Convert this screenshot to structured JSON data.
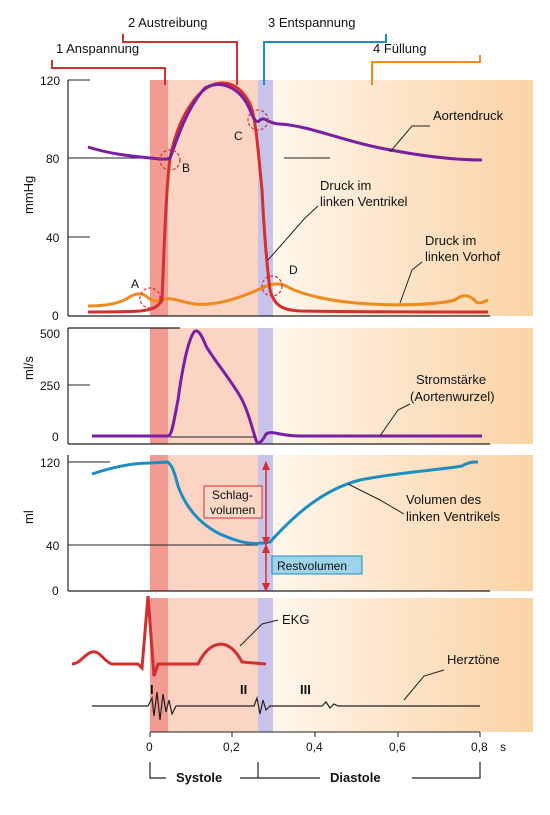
{
  "phases": {
    "p1": "1  Anspannung",
    "p2": "2  Austreibung",
    "p3": "3  Entspannung",
    "p4": "4  Füllung"
  },
  "panel1": {
    "ylabel": "mmHg",
    "ticks": [
      "120",
      "80",
      "40",
      "0"
    ],
    "aorta": "Aortendruck",
    "ventricle_l1": "Druck im",
    "ventricle_l2": "linken Ventrikel",
    "atrium_l1": "Druck im",
    "atrium_l2": "linken Vorhof",
    "markers": [
      "A",
      "B",
      "C",
      "D"
    ]
  },
  "panel2": {
    "ylabel": "ml/s",
    "ticks": [
      "500",
      "250",
      "0"
    ],
    "flow_l1": "Stromstärke",
    "flow_l2": "(Aortenwurzel)"
  },
  "panel3": {
    "ylabel": "ml",
    "ticks": [
      "120",
      "40",
      "0"
    ],
    "stroke_l1": "Schlag-",
    "stroke_l2": "volumen",
    "rest": "Restvolumen",
    "volume_l1": "Volumen des",
    "volume_l2": "linken Ventrikels"
  },
  "panel4": {
    "ekg": "EKG",
    "heart_sounds": "Herztöne",
    "sounds": [
      "I",
      "II",
      "III"
    ]
  },
  "xaxis": {
    "ticks": [
      "0",
      "0,2",
      "0,4",
      "0,6",
      "0,8"
    ],
    "unit": "s",
    "systole": "Systole",
    "diastole": "Diastole"
  },
  "colors": {
    "contraction": "#f39a92",
    "ejection": "#fbd7c6",
    "relaxation": "#c9c3ec",
    "filling_end": "#fbd6a8",
    "aorta": "#7b1fa2",
    "ventricle": "#d32f2f",
    "atrium": "#ef8a1f",
    "volume": "#1b8fc2",
    "ekg": "#d32f2f"
  }
}
